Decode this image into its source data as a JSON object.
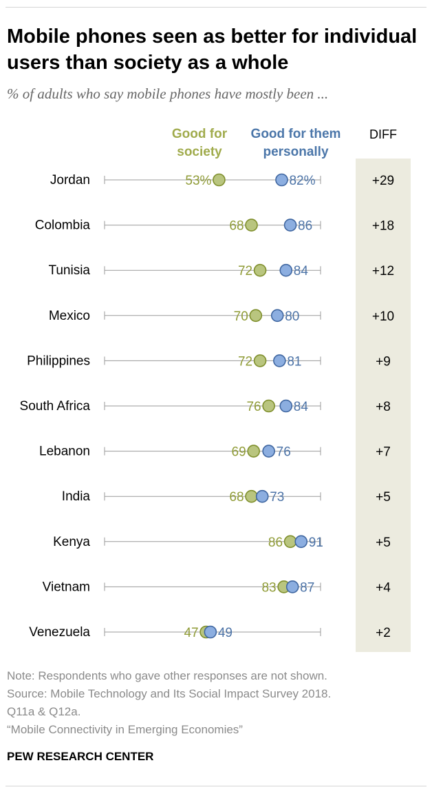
{
  "title": "Mobile phones seen as better for individual users than society as a whole",
  "subtitle": "% of adults who say mobile phones have mostly been ...",
  "legend": {
    "society": [
      "Good for",
      "society"
    ],
    "personal": [
      "Good for them",
      "personally"
    ]
  },
  "diff_header": "DIFF",
  "notes": [
    "Note: Respondents who gave other responses are not shown.",
    "Source: Mobile Technology and Its Social Impact Survey 2018.",
    "Q11a & Q12a.",
    "“Mobile Connectivity in Emerging Economies”"
  ],
  "brand": "PEW RESEARCH CENTER",
  "colors": {
    "society_fill": "#b9c57f",
    "society_stroke": "#7f8f2c",
    "society_text": "#8f9b36",
    "personal_fill": "#8caee0",
    "personal_stroke": "#3f66a0",
    "personal_text": "#4b72a6",
    "track": "#9a9a9a",
    "diff_band": "#ecebdf"
  },
  "chart_data": {
    "type": "dot",
    "title": "Mobile phones seen as better for individual users than society as a whole",
    "subtitle": "% of adults who say mobile phones have mostly been ...",
    "series_names": [
      "Good for society",
      "Good for them personally"
    ],
    "categories": [
      "Jordan",
      "Colombia",
      "Tunisia",
      "Mexico",
      "Philippines",
      "South Africa",
      "Lebanon",
      "India",
      "Kenya",
      "Vietnam",
      "Venezuela"
    ],
    "rows": [
      {
        "country": "Jordan",
        "society": 53,
        "personal": 82,
        "society_label": "53%",
        "personal_label": "82%",
        "diff": "+29"
      },
      {
        "country": "Colombia",
        "society": 68,
        "personal": 86,
        "society_label": "68",
        "personal_label": "86",
        "diff": "+18"
      },
      {
        "country": "Tunisia",
        "society": 72,
        "personal": 84,
        "society_label": "72",
        "personal_label": "84",
        "diff": "+12"
      },
      {
        "country": "Mexico",
        "society": 70,
        "personal": 80,
        "society_label": "70",
        "personal_label": "80",
        "diff": "+10"
      },
      {
        "country": "Philippines",
        "society": 72,
        "personal": 81,
        "society_label": "72",
        "personal_label": "81",
        "diff": "+9"
      },
      {
        "country": "South Africa",
        "society": 76,
        "personal": 84,
        "society_label": "76",
        "personal_label": "84",
        "diff": "+8"
      },
      {
        "country": "Lebanon",
        "society": 69,
        "personal": 76,
        "society_label": "69",
        "personal_label": "76",
        "diff": "+7"
      },
      {
        "country": "India",
        "society": 68,
        "personal": 73,
        "society_label": "68",
        "personal_label": "73",
        "diff": "+5"
      },
      {
        "country": "Kenya",
        "society": 86,
        "personal": 91,
        "society_label": "86",
        "personal_label": "91",
        "diff": "+5"
      },
      {
        "country": "Vietnam",
        "society": 83,
        "personal": 87,
        "society_label": "83",
        "personal_label": "87",
        "diff": "+4"
      },
      {
        "country": "Venezuela",
        "society": 47,
        "personal": 49,
        "society_label": "47",
        "personal_label": "49",
        "diff": "+2"
      }
    ],
    "xlim": [
      0,
      100
    ],
    "grid": false,
    "legend_position": "top"
  }
}
